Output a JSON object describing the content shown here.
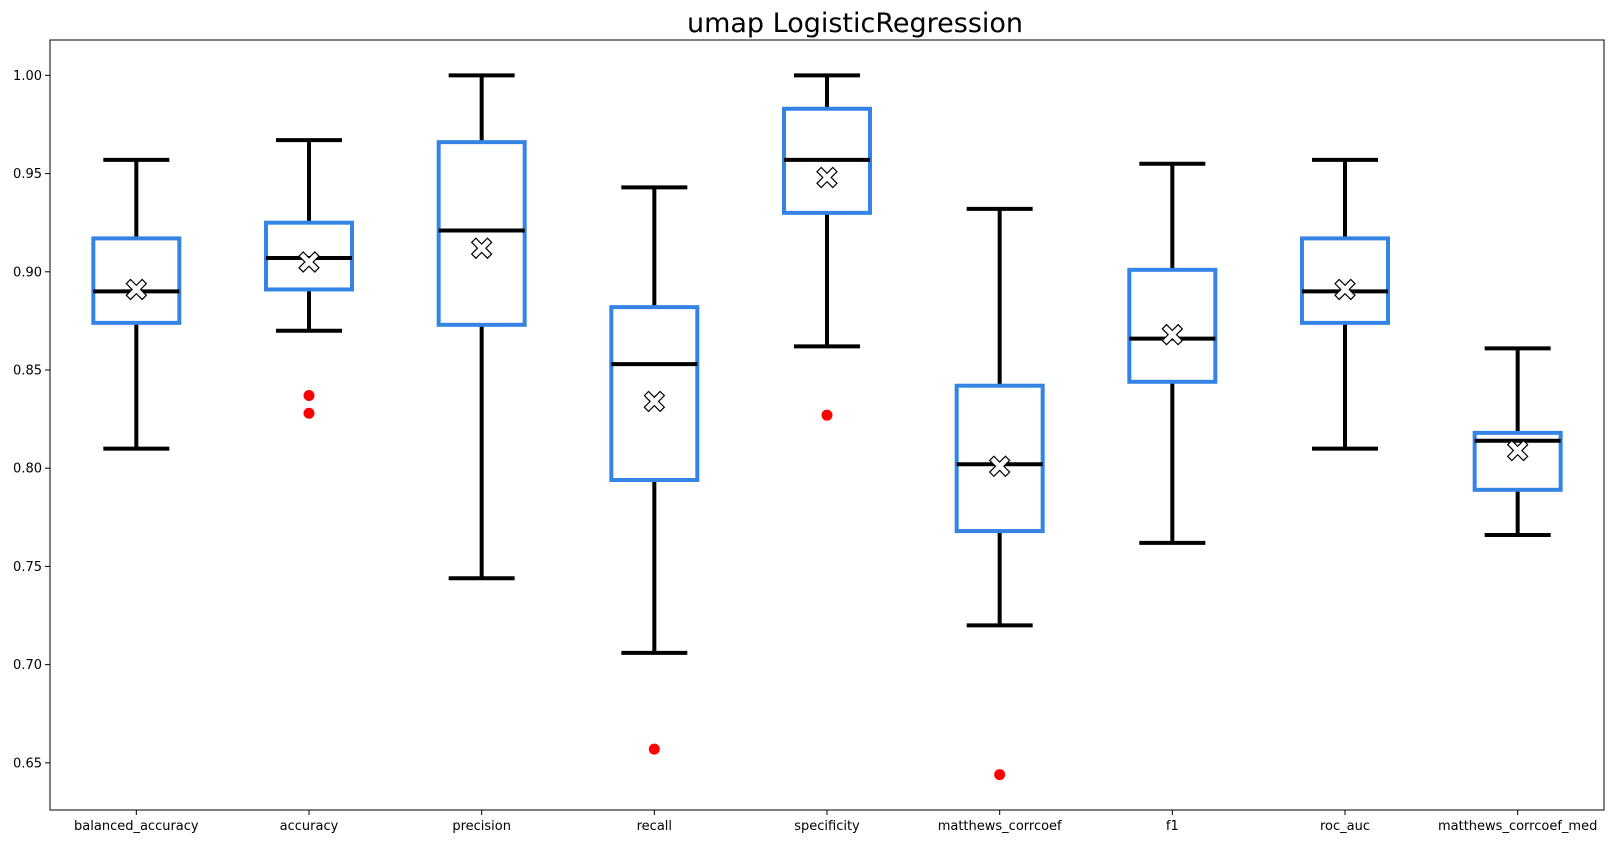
{
  "chart_data": {
    "type": "box",
    "title": "umap LogisticRegression",
    "xlabel": "",
    "ylabel": "",
    "ylim": [
      0.626,
      1.018
    ],
    "y_ticks": [
      "0.65",
      "0.70",
      "0.75",
      "0.80",
      "0.85",
      "0.90",
      "0.95",
      "1.00"
    ],
    "grid": false,
    "legend": "none",
    "colors": {
      "box": "#3384e5",
      "whisker": "#000000",
      "median": "#000000",
      "outlier": "#ff0000",
      "mean_fill": "#ffffff",
      "mean_edge": "#000000"
    },
    "categories": [
      "balanced_accuracy",
      "accuracy",
      "precision",
      "recall",
      "specificity",
      "matthews_corrcoef",
      "f1",
      "roc_auc",
      "matthews_corrcoef_med"
    ],
    "boxes": [
      {
        "name": "balanced_accuracy",
        "whisker_low": 0.81,
        "q1": 0.874,
        "median": 0.89,
        "q3": 0.917,
        "whisker_high": 0.957,
        "mean": 0.891,
        "outliers": []
      },
      {
        "name": "accuracy",
        "whisker_low": 0.87,
        "q1": 0.891,
        "median": 0.907,
        "q3": 0.925,
        "whisker_high": 0.967,
        "mean": 0.905,
        "outliers": [
          0.828,
          0.837
        ]
      },
      {
        "name": "precision",
        "whisker_low": 0.744,
        "q1": 0.873,
        "median": 0.921,
        "q3": 0.966,
        "whisker_high": 1.0,
        "mean": 0.912,
        "outliers": []
      },
      {
        "name": "recall",
        "whisker_low": 0.706,
        "q1": 0.794,
        "median": 0.853,
        "q3": 0.882,
        "whisker_high": 0.943,
        "mean": 0.834,
        "outliers": [
          0.657
        ]
      },
      {
        "name": "specificity",
        "whisker_low": 0.862,
        "q1": 0.93,
        "median": 0.957,
        "q3": 0.983,
        "whisker_high": 1.0,
        "mean": 0.948,
        "outliers": [
          0.827
        ]
      },
      {
        "name": "matthews_corrcoef",
        "whisker_low": 0.72,
        "q1": 0.768,
        "median": 0.802,
        "q3": 0.842,
        "whisker_high": 0.932,
        "mean": 0.801,
        "outliers": [
          0.644
        ]
      },
      {
        "name": "f1",
        "whisker_low": 0.762,
        "q1": 0.844,
        "median": 0.866,
        "q3": 0.901,
        "whisker_high": 0.955,
        "mean": 0.868,
        "outliers": []
      },
      {
        "name": "roc_auc",
        "whisker_low": 0.81,
        "q1": 0.874,
        "median": 0.89,
        "q3": 0.917,
        "whisker_high": 0.957,
        "mean": 0.891,
        "outliers": []
      },
      {
        "name": "matthews_corrcoef_med",
        "whisker_low": 0.766,
        "q1": 0.789,
        "median": 0.814,
        "q3": 0.818,
        "whisker_high": 0.861,
        "mean": 0.809,
        "outliers": []
      }
    ]
  }
}
